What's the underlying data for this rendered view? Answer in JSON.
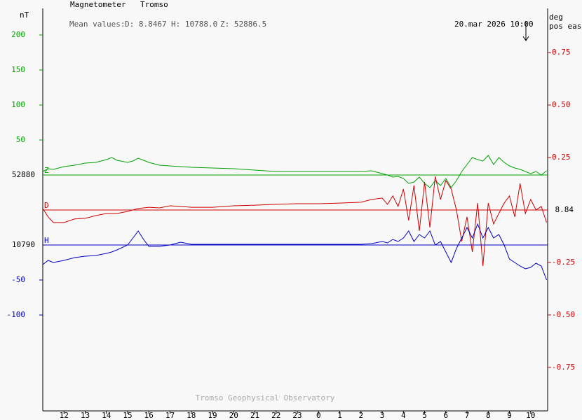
{
  "chart_data": {
    "type": "line",
    "title": "Magnetometer",
    "station": "Tromso",
    "mean_label": "Mean values:",
    "mean_d": "D: 8.8467",
    "mean_h": "H: 10788.0",
    "mean_z": "Z: 52886.5",
    "left_unit": "nT",
    "right_unit": "deg",
    "right_unit_note": "pos east",
    "timestamp": "20.mar 2026 10:00",
    "footer": "Tromso Geophysical Observatory",
    "xlim": [
      11,
      34.8
    ],
    "xticks": [
      12,
      13,
      14,
      15,
      16,
      17,
      18,
      19,
      20,
      21,
      22,
      23,
      {
        "value": 24,
        "label": "0"
      },
      {
        "value": 25,
        "label": "1"
      },
      {
        "value": 26,
        "label": "2"
      },
      {
        "value": 27,
        "label": "3"
      },
      {
        "value": 28,
        "label": "4"
      },
      {
        "value": 29,
        "label": "5"
      },
      {
        "value": 30,
        "label": "6"
      },
      {
        "value": 31,
        "label": "7"
      },
      {
        "value": 32,
        "label": "8"
      },
      {
        "value": 33,
        "label": "9"
      },
      {
        "value": 34,
        "label": "10"
      }
    ],
    "x": [
      11,
      11.25,
      11.5,
      12,
      12.5,
      13,
      13.5,
      14,
      14.25,
      14.5,
      15,
      15.25,
      15.5,
      15.75,
      16,
      16.5,
      17,
      17.5,
      18,
      19,
      20,
      21,
      22,
      23,
      24,
      25,
      26,
      26.5,
      27,
      27.25,
      27.5,
      27.75,
      28,
      28.25,
      28.5,
      28.75,
      29,
      29.25,
      29.5,
      29.75,
      30,
      30.25,
      30.5,
      30.75,
      31,
      31.25,
      31.5,
      31.75,
      32,
      32.25,
      32.5,
      32.75,
      33,
      33.25,
      33.5,
      33.75,
      34,
      34.25,
      34.5,
      34.75
    ],
    "series": [
      {
        "name": "Z",
        "color": "#00a000",
        "axis": "y",
        "baseline": 52880,
        "ylim": [
          -337,
          238
        ],
        "yticks": [
          50,
          100,
          150,
          200
        ],
        "values": [
          5,
          9,
          8,
          12,
          14,
          17,
          18,
          22,
          25,
          21,
          18,
          20,
          24,
          21,
          18,
          14,
          13,
          12,
          11,
          10,
          9,
          7,
          5,
          5,
          5,
          5,
          5,
          6,
          2,
          0,
          -3,
          -2,
          -5,
          -12,
          -10,
          -3,
          -12,
          -18,
          -8,
          -15,
          -5,
          -18,
          -8,
          5,
          15,
          25,
          22,
          20,
          28,
          15,
          25,
          18,
          13,
          10,
          8,
          5,
          2,
          5,
          0,
          6
        ]
      },
      {
        "name": "D",
        "color": "#d00000",
        "axis": "y2",
        "baseline": 8.84,
        "ylim": [
          -0.957,
          0.96
        ],
        "yticks": [
          {
            "value": 0.75,
            "label": "0.75"
          },
          {
            "value": 0.5,
            "label": "0.50"
          },
          0.25,
          -0.25,
          {
            "value": -0.5,
            "label": "-0.50"
          },
          -0.75
        ],
        "values": [
          0.007,
          -0.033,
          -0.06,
          -0.06,
          -0.043,
          -0.04,
          -0.027,
          -0.017,
          -0.017,
          -0.017,
          -0.007,
          0,
          0.007,
          0.01,
          0.013,
          0.01,
          0.02,
          0.017,
          0.013,
          0.013,
          0.02,
          0.023,
          0.027,
          0.03,
          0.03,
          0.033,
          0.037,
          0.05,
          0.057,
          0.027,
          0.067,
          0.017,
          0.1,
          -0.05,
          0.117,
          -0.1,
          0.133,
          -0.083,
          0.16,
          0.05,
          0.14,
          0.1,
          0,
          -0.15,
          -0.033,
          -0.2,
          0.033,
          -0.267,
          0.033,
          -0.067,
          -0.017,
          0.033,
          0.067,
          -0.033,
          0.127,
          -0.017,
          0.05,
          0,
          0.017,
          -0.06
        ]
      },
      {
        "name": "H",
        "color": "#0000c0",
        "axis": "y",
        "baseline": 10790,
        "ylim": [
          -237,
          338
        ],
        "yticks": [
          -50,
          -100
        ],
        "values": [
          -28,
          -22,
          -25,
          -22,
          -18,
          -16,
          -15,
          -12,
          -10,
          -7,
          0,
          10,
          20,
          8,
          -2,
          -2,
          0,
          4,
          1,
          1,
          1,
          1,
          1,
          1,
          1,
          1,
          1,
          2,
          5,
          3,
          8,
          5,
          10,
          20,
          5,
          15,
          10,
          20,
          0,
          5,
          -10,
          -25,
          -5,
          10,
          25,
          10,
          30,
          10,
          25,
          10,
          15,
          0,
          -20,
          -25,
          -30,
          -34,
          -32,
          -26,
          -30,
          -50
        ]
      }
    ]
  }
}
